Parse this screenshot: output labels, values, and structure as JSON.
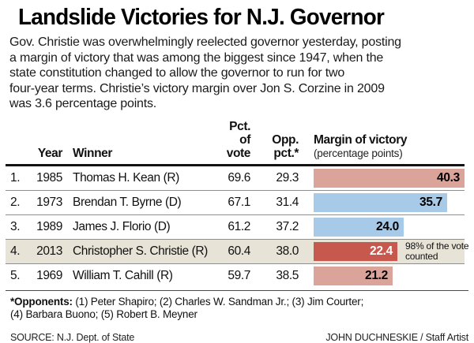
{
  "title": "Landslide Victories for N.J. Governor",
  "intro_lines": [
    "Gov. Christie was overwhelmingly reelected governor yesterday, posting",
    "a margin of victory that was among the biggest since 1947, when the",
    "state constitution changed to allow the governor to run for two",
    "four-year terms. Christie’s victory margin over Jon S. Corzine in 2009",
    "was 3.6 percentage points."
  ],
  "table": {
    "headers": {
      "year": "Year",
      "winner": "Winner",
      "pct_line1": "Pct. of",
      "pct_line2": "vote",
      "opp_line1": "Opp.",
      "opp_line2": "pct.*",
      "margin_line1": "Margin of victory",
      "margin_line2": "(percentage points)"
    },
    "rows": [
      {
        "rank": "1.",
        "year": "1985",
        "winner": "Thomas H. Kean (R)",
        "pct": "69.6",
        "opp": "29.3",
        "margin": "40.3",
        "party": "R",
        "highlight": false,
        "note": ""
      },
      {
        "rank": "2.",
        "year": "1973",
        "winner": "Brendan T. Byrne (D)",
        "pct": "67.1",
        "opp": "31.4",
        "margin": "35.7",
        "party": "D",
        "highlight": false,
        "note": ""
      },
      {
        "rank": "3.",
        "year": "1989",
        "winner": "James J. Florio (D)",
        "pct": "61.2",
        "opp": "37.2",
        "margin": "24.0",
        "party": "D",
        "highlight": false,
        "note": ""
      },
      {
        "rank": "4.",
        "year": "2013",
        "winner": "Christopher S. Christie (R)",
        "pct": "60.4",
        "opp": "38.0",
        "margin": "22.4",
        "party": "R",
        "highlight": true,
        "note": "98% of the vote counted"
      },
      {
        "rank": "5.",
        "year": "1969",
        "winner": "William T. Cahill (R)",
        "pct": "59.7",
        "opp": "38.5",
        "margin": "21.2",
        "party": "R",
        "highlight": false,
        "note": ""
      }
    ]
  },
  "palette": {
    "rep_bar": "#DBA49B",
    "dem_bar": "#A6CAE8",
    "highlight_bar": "#C6584E",
    "highlight_row": "#E8E3D7",
    "bar_label": "#000000",
    "highlight_bar_label": "#FFFFFF"
  },
  "footnote": {
    "bold": "*Opponents:",
    "rest": " (1) Peter Shapiro; (2) Charles W. Sandman Jr.; (3) Jim Courter;",
    "line2": "(4) Barbara Buono; (5) Robert B. Meyner"
  },
  "source": "SOURCE: N.J. Dept. of State",
  "credit": "JOHN DUCHNESKIE / Staff Artist",
  "chart_data": {
    "type": "bar",
    "orientation": "horizontal",
    "title": "Margin of victory (percentage points)",
    "categories": [
      "1985 Thomas H. Kean (R)",
      "1973 Brendan T. Byrne (D)",
      "1989 James J. Florio (D)",
      "2013 Christopher S. Christie (R)",
      "1969 William T. Cahill (R)"
    ],
    "values": [
      40.3,
      35.7,
      24.0,
      22.4,
      21.2
    ],
    "series": [
      {
        "name": "Pct. of vote",
        "values": [
          69.6,
          67.1,
          61.2,
          60.4,
          59.7
        ]
      },
      {
        "name": "Opp. pct.",
        "values": [
          29.3,
          31.4,
          37.2,
          38.0,
          38.5
        ]
      },
      {
        "name": "Margin of victory",
        "values": [
          40.3,
          35.7,
          24.0,
          22.4,
          21.2
        ]
      }
    ],
    "xlim": [
      0,
      40.3
    ],
    "bar_colors": {
      "R": "#DBA49B",
      "D": "#A6CAE8",
      "highlight": "#C6584E"
    },
    "annotation": "98% of the vote counted (row 2013)",
    "legend_position": "none",
    "grid": false
  }
}
